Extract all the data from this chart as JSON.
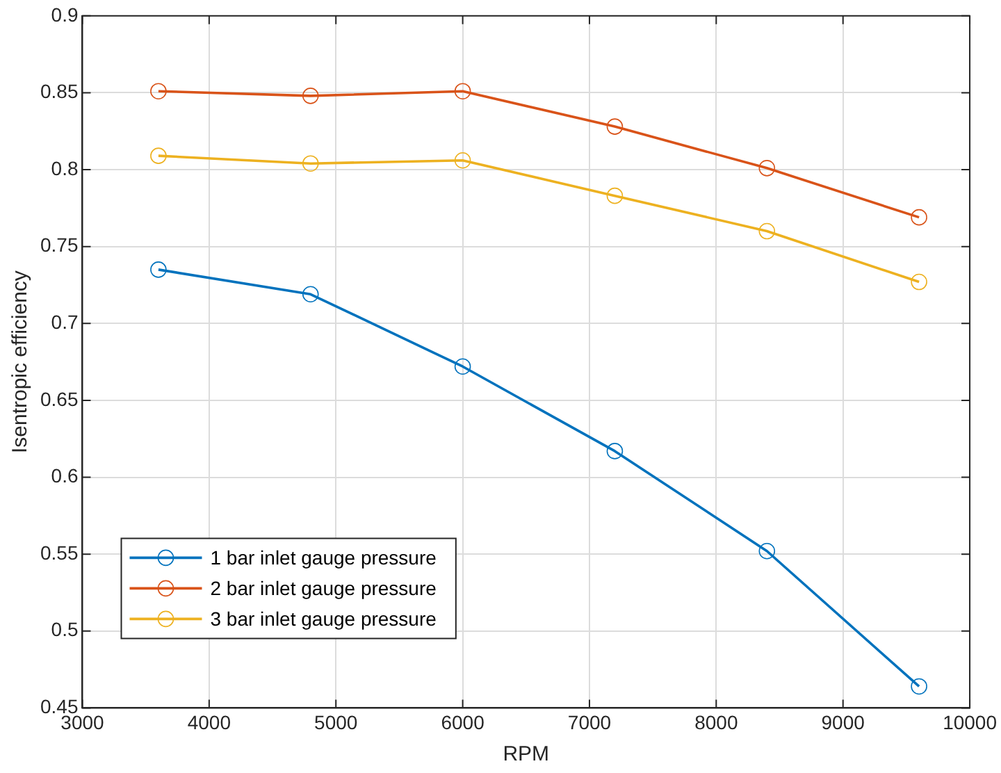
{
  "chart_data": {
    "type": "line",
    "xlabel": "RPM",
    "ylabel": "Isentropic efficiency",
    "x": [
      3600,
      4800,
      6000,
      7200,
      8400,
      9600
    ],
    "series": [
      {
        "name": "1 bar inlet gauge pressure",
        "color": "#0072bd",
        "values": [
          0.735,
          0.719,
          0.672,
          0.617,
          0.552,
          0.464
        ]
      },
      {
        "name": "2 bar inlet gauge pressure",
        "color": "#d95319",
        "values": [
          0.851,
          0.848,
          0.851,
          0.828,
          0.801,
          0.769
        ]
      },
      {
        "name": "3 bar inlet gauge pressure",
        "color": "#edb120",
        "values": [
          0.809,
          0.804,
          0.806,
          0.783,
          0.76,
          0.727
        ]
      }
    ],
    "xlim": [
      3000,
      10000
    ],
    "xticks": [
      3000,
      4000,
      5000,
      6000,
      7000,
      8000,
      9000,
      10000
    ],
    "ylim": [
      0.45,
      0.9
    ],
    "yticks": [
      0.45,
      0.5,
      0.55,
      0.6,
      0.65,
      0.7,
      0.75,
      0.8,
      0.85,
      0.9
    ],
    "grid": true,
    "legend": "bottom left",
    "marker": "circle",
    "line_style": "solid"
  }
}
